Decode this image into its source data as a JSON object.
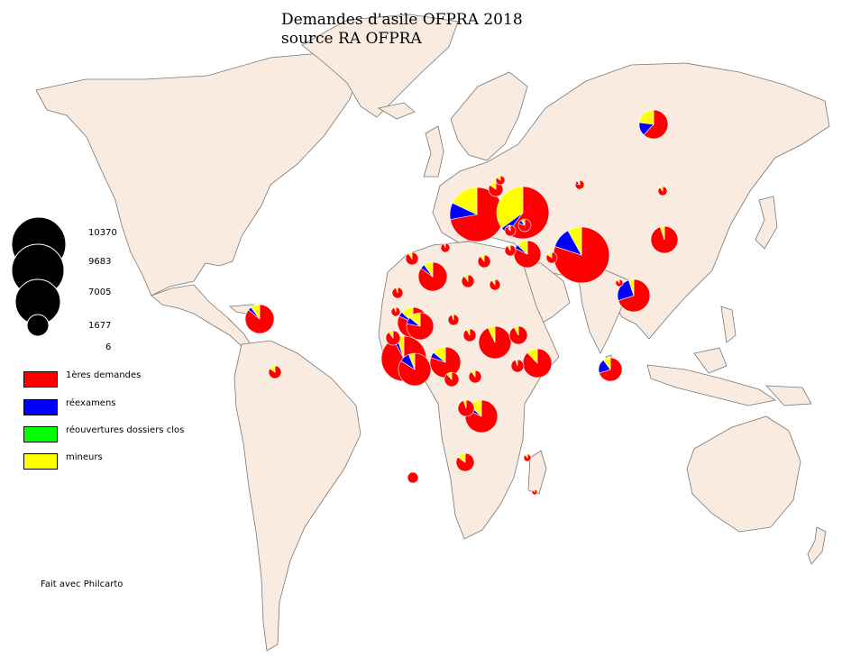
{
  "map": {
    "title_line1": "Demandes d'asile OFPRA 2018",
    "title_line2": "source RA OFPRA",
    "credit": "Fait avec Philcarto"
  },
  "size_legend": [
    {
      "value": "10370"
    },
    {
      "value": "9683"
    },
    {
      "value": "7005"
    },
    {
      "value": "1677"
    },
    {
      "value": "6"
    }
  ],
  "category_legend": [
    {
      "label": "1ères demandes",
      "color": "#ff0000"
    },
    {
      "label": "réexamens",
      "color": "#0000ff"
    },
    {
      "label": "réouvertures dossiers clos",
      "color": "#00ff00"
    },
    {
      "label": "mineurs",
      "color": "#ffff00"
    }
  ],
  "colors": {
    "land": "#f9ebe0",
    "border": "#777777",
    "first": "#ff0000",
    "reexam": "#0000ff",
    "reopen": "#00ff00",
    "minor": "#ffff00"
  }
}
